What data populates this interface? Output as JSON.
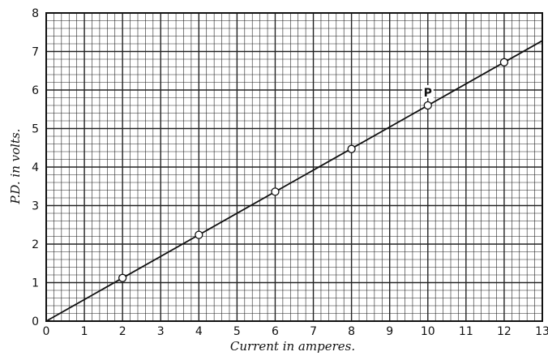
{
  "chart_data": {
    "type": "scatter",
    "title": "",
    "xlabel": "Current in amperes.",
    "ylabel": "P.D. in volts.",
    "xlim": [
      0,
      13
    ],
    "ylim": [
      0,
      8
    ],
    "x_ticks": [
      "0",
      "1",
      "2",
      "3",
      "4",
      "5",
      "6",
      "7",
      "8",
      "9",
      "10",
      "11",
      "12",
      "13"
    ],
    "y_ticks": [
      "0",
      "1",
      "2",
      "3",
      "4",
      "5",
      "6",
      "7",
      "8"
    ],
    "grid": true,
    "minor_divisions_per_unit": 5,
    "points": [
      {
        "x": 2,
        "y": 1.12
      },
      {
        "x": 4,
        "y": 2.24
      },
      {
        "x": 6,
        "y": 3.36
      },
      {
        "x": 8,
        "y": 4.47
      },
      {
        "x": 10,
        "y": 5.6
      },
      {
        "x": 12,
        "y": 6.72
      }
    ],
    "fit_line": {
      "from": [
        0,
        0
      ],
      "to": [
        13,
        7.28
      ]
    },
    "annotations": [
      {
        "text": "P",
        "x": 10,
        "y": 5.6
      }
    ]
  }
}
